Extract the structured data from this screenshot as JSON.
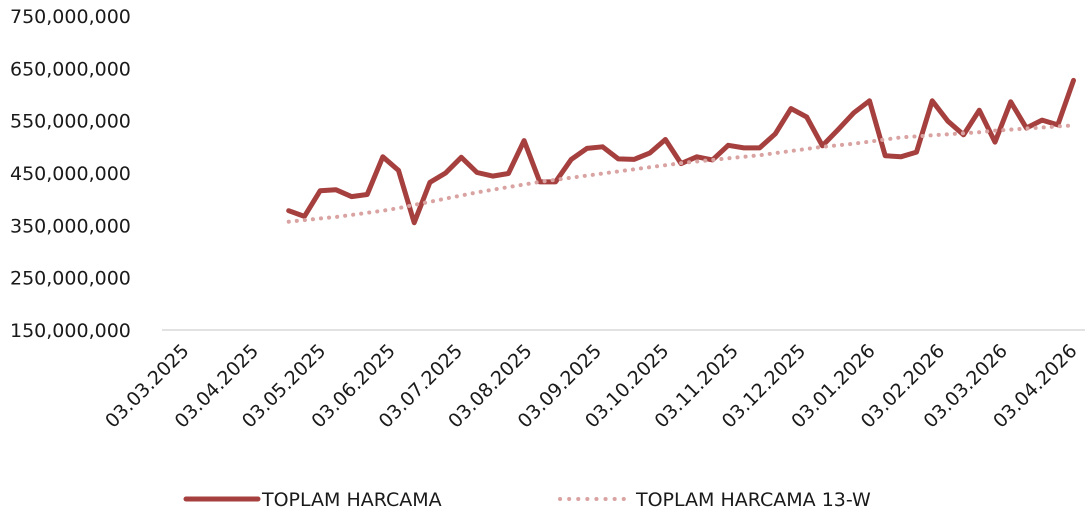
{
  "chart_data": {
    "type": "line",
    "x": [
      "2025-04-16",
      "2025-04-23",
      "2025-04-30",
      "2025-05-07",
      "2025-05-14",
      "2025-05-21",
      "2025-05-28",
      "2025-06-04",
      "2025-06-11",
      "2025-06-18",
      "2025-06-25",
      "2025-07-02",
      "2025-07-09",
      "2025-07-16",
      "2025-07-23",
      "2025-07-30",
      "2025-08-06",
      "2025-08-13",
      "2025-08-20",
      "2025-08-27",
      "2025-09-03",
      "2025-09-10",
      "2025-09-17",
      "2025-09-24",
      "2025-10-01",
      "2025-10-08",
      "2025-10-15",
      "2025-10-22",
      "2025-10-29",
      "2025-11-05",
      "2025-11-12",
      "2025-11-19",
      "2025-11-26",
      "2025-12-03",
      "2025-12-10",
      "2025-12-17",
      "2025-12-24",
      "2025-12-31",
      "2026-01-07",
      "2026-01-14",
      "2026-01-21",
      "2026-01-28",
      "2026-02-04",
      "2026-02-11",
      "2026-02-18",
      "2026-02-25",
      "2026-03-04",
      "2026-03-11",
      "2026-03-18",
      "2026-03-25",
      "2026-04-01"
    ],
    "series": [
      {
        "name": "TOPLAM HARCAMA",
        "color": "#a5403f",
        "style": "solid",
        "values": [
          378000000,
          367000000,
          416000000,
          418000000,
          405000000,
          409000000,
          481000000,
          455000000,
          355000000,
          432000000,
          450000000,
          480000000,
          451000000,
          444000000,
          449000000,
          512000000,
          433000000,
          433000000,
          476000000,
          497000000,
          500000000,
          477000000,
          476000000,
          488000000,
          514000000,
          468000000,
          481000000,
          475000000,
          503000000,
          498000000,
          498000000,
          525000000,
          573000000,
          557000000,
          502000000,
          533000000,
          565000000,
          588000000,
          483000000,
          481000000,
          490000000,
          588000000,
          549000000,
          523000000,
          570000000,
          509000000,
          586000000,
          536000000,
          551000000,
          542000000,
          627000000
        ]
      },
      {
        "name": "TOPLAM HARCAMA 13-W",
        "color": "#d9a3a2",
        "style": "dotted",
        "values": [
          357000000,
          360000000,
          363000000,
          366000000,
          370000000,
          374000000,
          378000000,
          383000000,
          389000000,
          395000000,
          401000000,
          407000000,
          413000000,
          418000000,
          423000000,
          428000000,
          433000000,
          437000000,
          441000000,
          445000000,
          449000000,
          453000000,
          457000000,
          461000000,
          465000000,
          469000000,
          472000000,
          475000000,
          478000000,
          481000000,
          484000000,
          488000000,
          492000000,
          496000000,
          500000000,
          503000000,
          506000000,
          510000000,
          514000000,
          518000000,
          520000000,
          522000000,
          524000000,
          526000000,
          528000000,
          531000000,
          533000000,
          535000000,
          537000000,
          539000000,
          541000000
        ]
      }
    ],
    "xlim": [
      "2025-03-03",
      "2026-04-03"
    ],
    "xticks": [
      {
        "value": "2025-03-03",
        "label": "03.03.2025"
      },
      {
        "value": "2025-04-03",
        "label": "03.04.2025"
      },
      {
        "value": "2025-05-03",
        "label": "03.05.2025"
      },
      {
        "value": "2025-06-03",
        "label": "03.06.2025"
      },
      {
        "value": "2025-07-03",
        "label": "03.07.2025"
      },
      {
        "value": "2025-08-03",
        "label": "03.08.2025"
      },
      {
        "value": "2025-09-03",
        "label": "03.09.2025"
      },
      {
        "value": "2025-10-03",
        "label": "03.10.2025"
      },
      {
        "value": "2025-11-03",
        "label": "03.11.2025"
      },
      {
        "value": "2025-12-03",
        "label": "03.12.2025"
      },
      {
        "value": "2026-01-03",
        "label": "03.01.2026"
      },
      {
        "value": "2026-02-03",
        "label": "03.02.2026"
      },
      {
        "value": "2026-03-03",
        "label": "03.03.2026"
      },
      {
        "value": "2026-04-03",
        "label": "03.04.2026"
      }
    ],
    "ylim": [
      150000000,
      750000000
    ],
    "yticks": [
      {
        "value": 150000000,
        "label": "150,000,000"
      },
      {
        "value": 250000000,
        "label": "250,000,000"
      },
      {
        "value": 350000000,
        "label": "350,000,000"
      },
      {
        "value": 450000000,
        "label": "450,000,000"
      },
      {
        "value": 550000000,
        "label": "550,000,000"
      },
      {
        "value": 650000000,
        "label": "650,000,000"
      },
      {
        "value": 750000000,
        "label": "750,000,000"
      }
    ],
    "grid": false,
    "legend": "bottom"
  }
}
